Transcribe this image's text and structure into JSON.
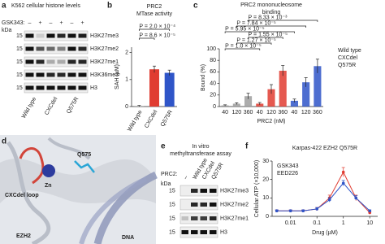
{
  "panel_a": {
    "label": "a",
    "title": "K562 cellular histone levels",
    "treatment": "GSK343:",
    "treatment_states": [
      "–",
      "+",
      "–",
      "+",
      "–",
      "+"
    ],
    "unit": "kDa",
    "bands": [
      {
        "name": "H3K27me3",
        "kda": "15"
      },
      {
        "name": "H3K27me2",
        "kda": "15"
      },
      {
        "name": "H3K27me1",
        "kda": "15"
      },
      {
        "name": "H3K36me3",
        "kda": "15"
      },
      {
        "name": "H3",
        "kda": "15"
      }
    ],
    "lanes": [
      "Wild type",
      "CXCdel",
      "Q575R"
    ]
  },
  "panel_d": {
    "label": "d",
    "labels": [
      "CXCdel loop",
      "Zn",
      "Q575",
      "EZH2",
      "DNA"
    ]
  },
  "panel_e": {
    "label": "e",
    "title": [
      "In vitro",
      "methyltransferase assay"
    ],
    "treatment": "PRC2:",
    "lanes": [
      "–",
      "Wild type",
      "CXCdel",
      "Q575R"
    ],
    "unit": "kDa",
    "bands": [
      {
        "name": "H3K27me3",
        "kda": "15"
      },
      {
        "name": "H3K27me2",
        "kda": "15"
      },
      {
        "name": "H3K27me1",
        "kda": "15"
      },
      {
        "name": "H3",
        "kda": "15"
      }
    ]
  },
  "chart_data": [
    {
      "type": "bar",
      "panel_label": "b",
      "title": [
        "PRC2",
        "MTase activity"
      ],
      "y_label": "SAH (µM)",
      "categories": [
        "Wild type",
        "CXCdel",
        "Q575R"
      ],
      "values": [
        0.02,
        1.38,
        1.25
      ],
      "errors": [
        0.02,
        0.12,
        0.1
      ],
      "colors": [
        "#9e9e9e",
        "#e03c31",
        "#2f55c8"
      ],
      "ylim": [
        0,
        2.2
      ],
      "yticks": [
        0,
        1,
        2
      ],
      "annotations": [
        "P = 2.0 × 10⁻⁴",
        "P = 8.6 × 10⁻⁵"
      ]
    },
    {
      "type": "grouped-bar",
      "panel_label": "c",
      "title": [
        "PRC2 mononucleosome",
        "binding"
      ],
      "y_label": "Bound (%)",
      "x_label": "PRC2 (nM)",
      "categories": [
        "40",
        "120",
        "360"
      ],
      "series": [
        {
          "name": "Wild type",
          "color": "#9e9e9e",
          "values": [
            2,
            5,
            18
          ],
          "errors": [
            1,
            1.5,
            5
          ]
        },
        {
          "name": "CXCdel",
          "color": "#e03c31",
          "values": [
            5,
            30,
            62
          ],
          "errors": [
            2,
            8,
            9
          ]
        },
        {
          "name": "Q575R",
          "color": "#2f55c8",
          "values": [
            10,
            42,
            70
          ],
          "errors": [
            3,
            8,
            12
          ]
        }
      ],
      "ylim": [
        0,
        100
      ],
      "yticks": [
        0,
        20,
        40,
        60,
        80,
        100
      ],
      "legend": "right",
      "annotations": [
        "P = 8.33 × 10⁻³",
        "P = 7.84 × 10⁻⁵",
        "P = 5.95 × 10⁻⁵",
        "P = 1.55 × 10⁻⁵",
        "P = 1.27 × 10⁻⁵",
        "P = 1.0 × 10⁻⁵"
      ]
    },
    {
      "type": "line",
      "panel_label": "f",
      "title": "Karpas-422 EZH2 Q575R",
      "y_label": "Cellular ATP (×10,000)",
      "x_label": "Drug (µM)",
      "x": [
        0.003,
        0.01,
        0.03,
        0.1,
        0.3,
        1,
        3,
        10
      ],
      "log_x": true,
      "series": [
        {
          "name": "GSK343",
          "color": "#e03c31",
          "values": [
            3,
            3,
            3,
            4,
            10,
            24,
            10,
            2
          ],
          "errors": [
            0.5,
            0.5,
            0.5,
            0.8,
            1.5,
            2.5,
            1.5,
            0.5
          ]
        },
        {
          "name": "EED226",
          "color": "#2f55c8",
          "values": [
            3,
            3,
            3,
            4,
            9,
            18,
            10,
            3
          ],
          "errors": [
            0.5,
            0.5,
            0.5,
            0.8,
            1.2,
            1.5,
            1.2,
            0.5
          ]
        }
      ],
      "xlim": [
        0.002,
        20
      ],
      "xticks": [
        0.01,
        0.1,
        1,
        10
      ],
      "ylim": [
        0,
        30
      ],
      "yticks": [
        0,
        10,
        20,
        30
      ],
      "legend": "upper left"
    }
  ]
}
